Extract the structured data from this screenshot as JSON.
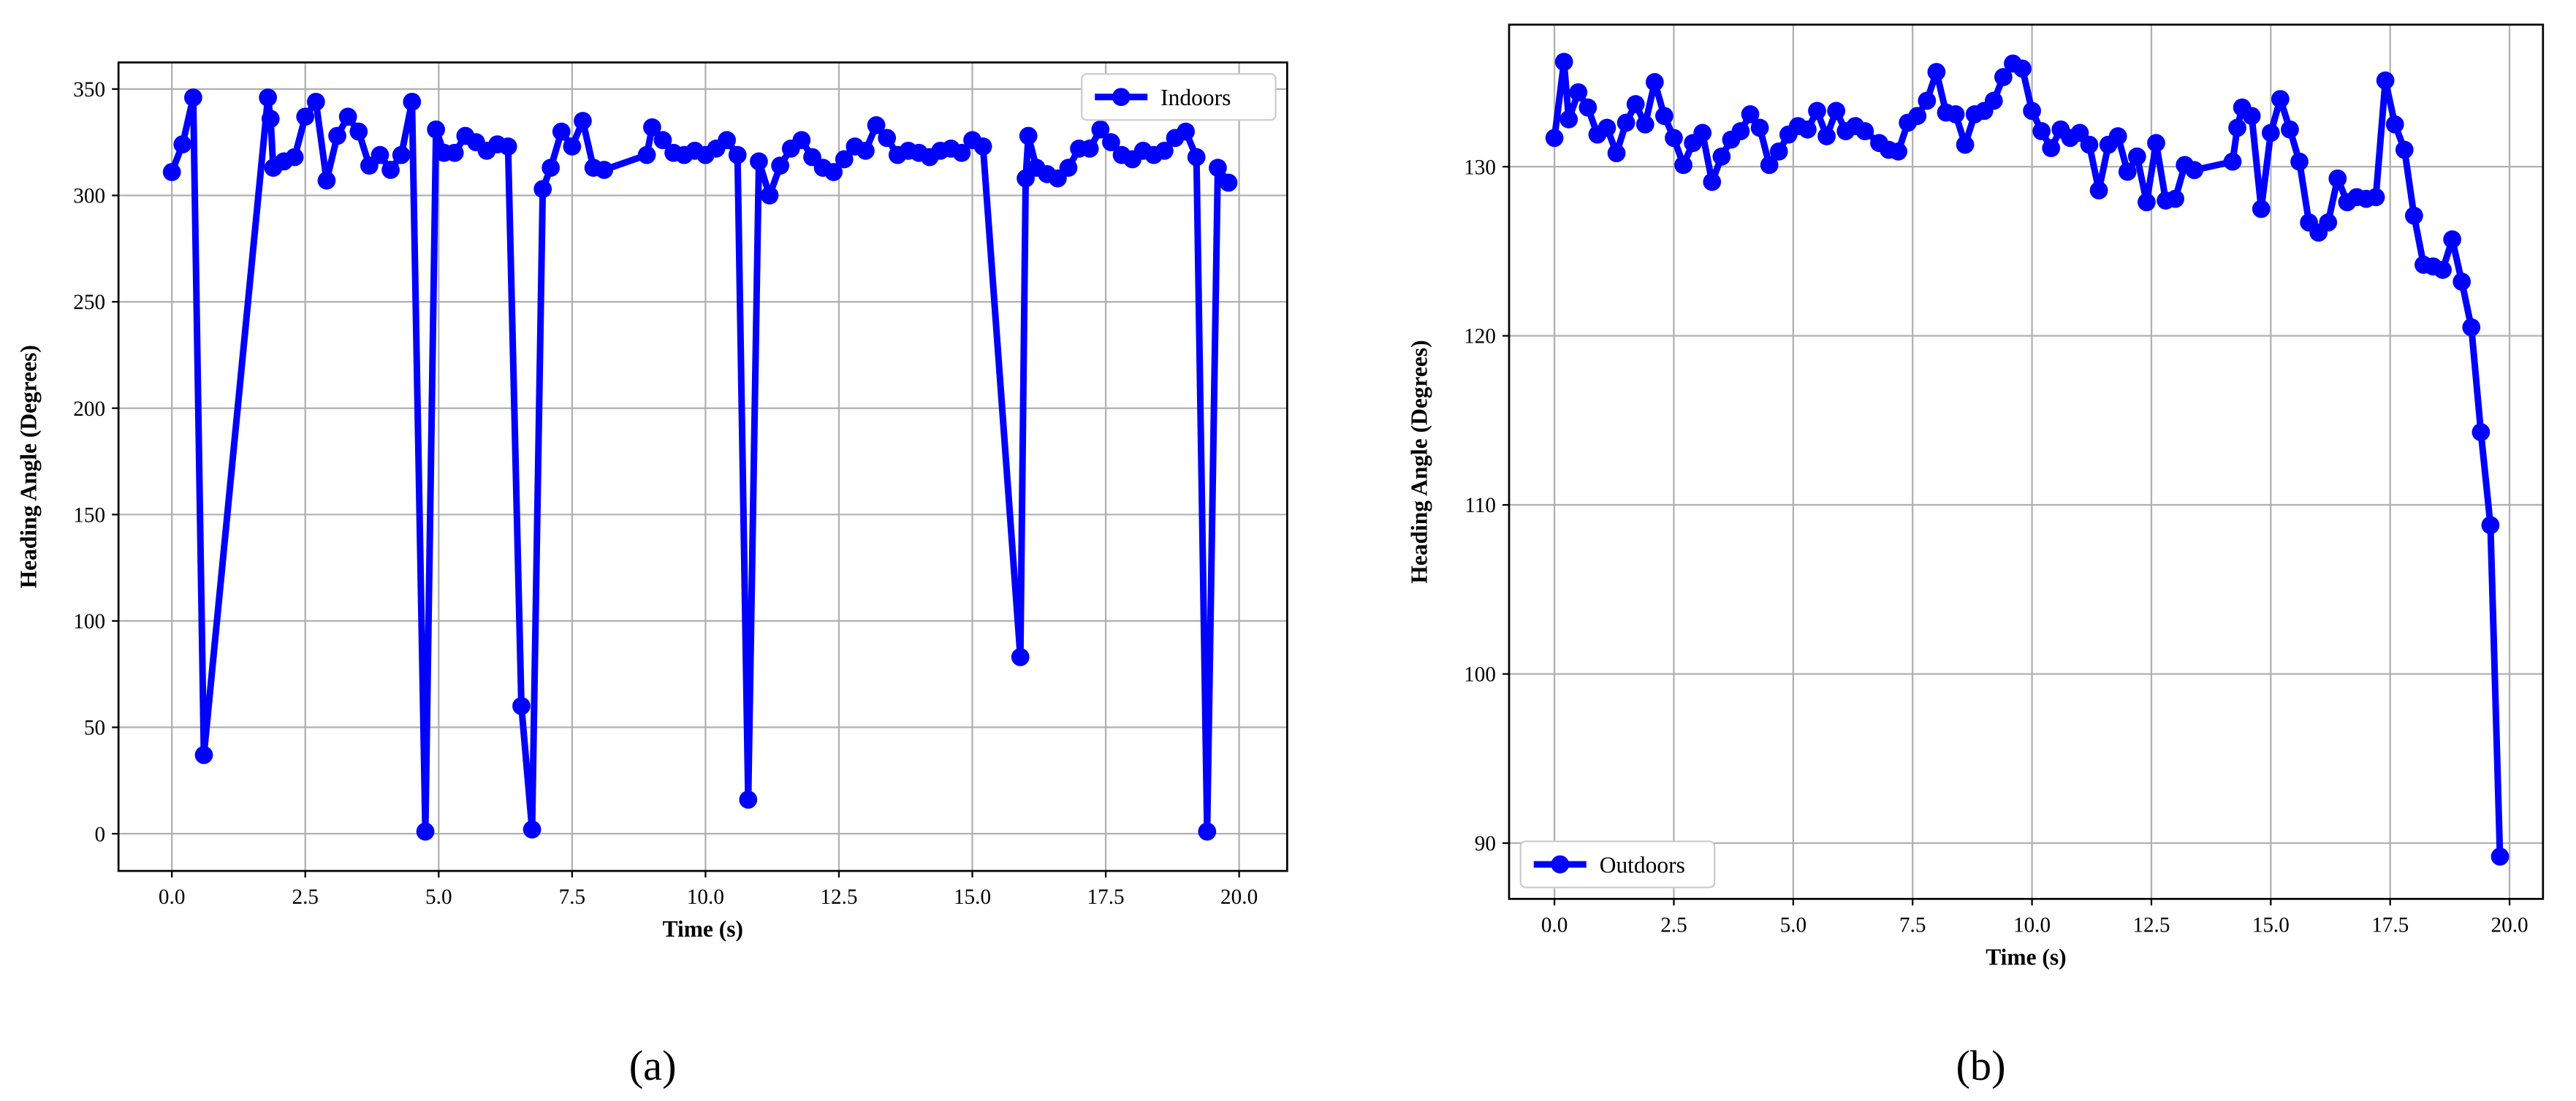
{
  "chart_data": [
    {
      "type": "line",
      "caption": "(a)",
      "xlabel": "Time (s)",
      "ylabel": "Heading Angle (Degrees)",
      "legend": "upper right",
      "grid": true,
      "xlim": [
        -1,
        20.9
      ],
      "ylim": [
        -17.5,
        362.5
      ],
      "xticks": [
        {
          "value": 0,
          "label": "0.0"
        },
        {
          "value": 2.5,
          "label": "2.5"
        },
        {
          "value": 5,
          "label": "5.0"
        },
        {
          "value": 7.5,
          "label": "7.5"
        },
        {
          "value": 10,
          "label": "10.0"
        },
        {
          "value": 12.5,
          "label": "12.5"
        },
        {
          "value": 15,
          "label": "15.0"
        },
        {
          "value": 17.5,
          "label": "17.5"
        },
        {
          "value": 20,
          "label": "20.0"
        }
      ],
      "yticks": [
        0,
        50,
        100,
        150,
        200,
        250,
        300,
        350
      ],
      "x": [
        0,
        0.2,
        0.4,
        0.6,
        1.8,
        1.85,
        1.9,
        2.1,
        2.3,
        2.5,
        2.7,
        2.9,
        3.1,
        3.3,
        3.5,
        3.7,
        3.9,
        4.1,
        4.3,
        4.5,
        4.75,
        4.95,
        5.1,
        5.3,
        5.5,
        5.7,
        5.9,
        6.1,
        6.3,
        6.55,
        6.75,
        6.95,
        7.1,
        7.3,
        7.5,
        7.7,
        7.9,
        8.1,
        8.9,
        9.0,
        9.2,
        9.4,
        9.6,
        9.8,
        10.0,
        10.2,
        10.4,
        10.6,
        10.8,
        11.0,
        11.2,
        11.4,
        11.6,
        11.8,
        12.0,
        12.2,
        12.4,
        12.6,
        12.8,
        13.0,
        13.2,
        13.4,
        13.6,
        13.8,
        14.0,
        14.2,
        14.4,
        14.6,
        14.8,
        15.0,
        15.2,
        15.9,
        16.0,
        16.05,
        16.2,
        16.4,
        16.6,
        16.8,
        17.0,
        17.2,
        17.4,
        17.6,
        17.8,
        18.0,
        18.2,
        18.4,
        18.6,
        18.8,
        19.0,
        19.2,
        19.4,
        19.6,
        19.8
      ],
      "series": [
        {
          "name": "Indoors",
          "color": "#0000ff",
          "values": [
            311,
            324,
            346,
            37,
            346,
            336,
            313,
            316,
            318,
            337,
            344,
            307,
            328,
            337,
            330,
            314,
            319,
            312,
            319,
            344,
            1,
            331,
            320,
            320,
            328,
            325,
            321,
            324,
            323,
            60,
            2,
            303,
            313,
            330,
            323,
            335,
            313,
            312,
            319,
            332,
            326,
            320,
            319,
            321,
            319,
            322,
            326,
            319,
            16,
            316,
            300,
            314,
            322,
            326,
            318,
            313,
            311,
            317,
            323,
            321,
            333,
            327,
            319,
            321,
            320,
            318,
            321,
            322,
            320,
            326,
            323,
            83,
            308,
            328,
            313,
            310,
            308,
            313,
            322,
            322,
            331,
            325,
            319,
            317,
            321,
            319,
            321,
            327,
            330,
            318,
            1,
            313,
            306
          ]
        }
      ]
    },
    {
      "type": "line",
      "caption": "(b)",
      "xlabel": "Time (s)",
      "ylabel": "Heading Angle (Degrees)",
      "legend": "lower left",
      "grid": true,
      "xlim": [
        -0.95,
        20.7
      ],
      "ylim": [
        86.7,
        138.4
      ],
      "xticks": [
        {
          "value": 0,
          "label": "0.0"
        },
        {
          "value": 2.5,
          "label": "2.5"
        },
        {
          "value": 5,
          "label": "5.0"
        },
        {
          "value": 7.5,
          "label": "7.5"
        },
        {
          "value": 10,
          "label": "10.0"
        },
        {
          "value": 12.5,
          "label": "12.5"
        },
        {
          "value": 15,
          "label": "15.0"
        },
        {
          "value": 17.5,
          "label": "17.5"
        },
        {
          "value": 20,
          "label": "20.0"
        }
      ],
      "yticks": [
        90,
        100,
        110,
        120,
        130
      ],
      "x": [
        0,
        0.2,
        0.3,
        0.5,
        0.7,
        0.9,
        1.1,
        1.3,
        1.5,
        1.7,
        1.9,
        2.1,
        2.3,
        2.5,
        2.7,
        2.9,
        3.1,
        3.3,
        3.5,
        3.7,
        3.9,
        4.1,
        4.3,
        4.5,
        4.7,
        4.9,
        5.1,
        5.3,
        5.5,
        5.7,
        5.9,
        6.1,
        6.3,
        6.5,
        6.8,
        7.0,
        7.2,
        7.4,
        7.6,
        7.8,
        8.0,
        8.2,
        8.4,
        8.6,
        8.8,
        9.0,
        9.2,
        9.4,
        9.6,
        9.8,
        10.0,
        10.2,
        10.4,
        10.6,
        10.8,
        11.0,
        11.2,
        11.4,
        11.6,
        11.8,
        12.0,
        12.2,
        12.4,
        12.6,
        12.8,
        13.0,
        13.2,
        13.4,
        14.2,
        14.3,
        14.4,
        14.6,
        14.8,
        15.0,
        15.2,
        15.4,
        15.6,
        15.8,
        16.0,
        16.2,
        16.4,
        16.6,
        16.8,
        17.0,
        17.2,
        17.4,
        17.6,
        17.8,
        18.0,
        18.2,
        18.4,
        18.6,
        18.8,
        19.0,
        19.2,
        19.4,
        19.6,
        19.8
      ],
      "series": [
        {
          "name": "Outdoors",
          "color": "#0000ff",
          "values": [
            131.7,
            136.2,
            132.8,
            134.4,
            133.5,
            131.9,
            132.3,
            130.8,
            132.6,
            133.7,
            132.5,
            135,
            133,
            131.7,
            130.1,
            131.4,
            132,
            129.1,
            130.6,
            131.6,
            132.1,
            133.1,
            132.3,
            130.1,
            130.9,
            131.9,
            132.4,
            132.2,
            133.3,
            131.8,
            133.3,
            132.1,
            132.4,
            132.1,
            131.4,
            131,
            130.9,
            132.6,
            133,
            133.9,
            135.6,
            133.2,
            133.1,
            131.3,
            133.1,
            133.3,
            133.9,
            135.3,
            136.1,
            135.8,
            133.3,
            132.1,
            131.1,
            132.2,
            131.7,
            132,
            131.3,
            128.6,
            131.3,
            131.8,
            129.7,
            130.6,
            127.9,
            131.4,
            128,
            128.1,
            130.1,
            129.8,
            130.3,
            132.3,
            133.5,
            133,
            127.5,
            132,
            134,
            132.2,
            130.3,
            126.7,
            126.1,
            126.7,
            129.3,
            127.9,
            128.2,
            128.1,
            128.2,
            135.1,
            132.5,
            131,
            127.1,
            124.2,
            124.1,
            123.9,
            125.7,
            123.2,
            120.5,
            114.3,
            108.8,
            89.2
          ]
        }
      ]
    }
  ]
}
